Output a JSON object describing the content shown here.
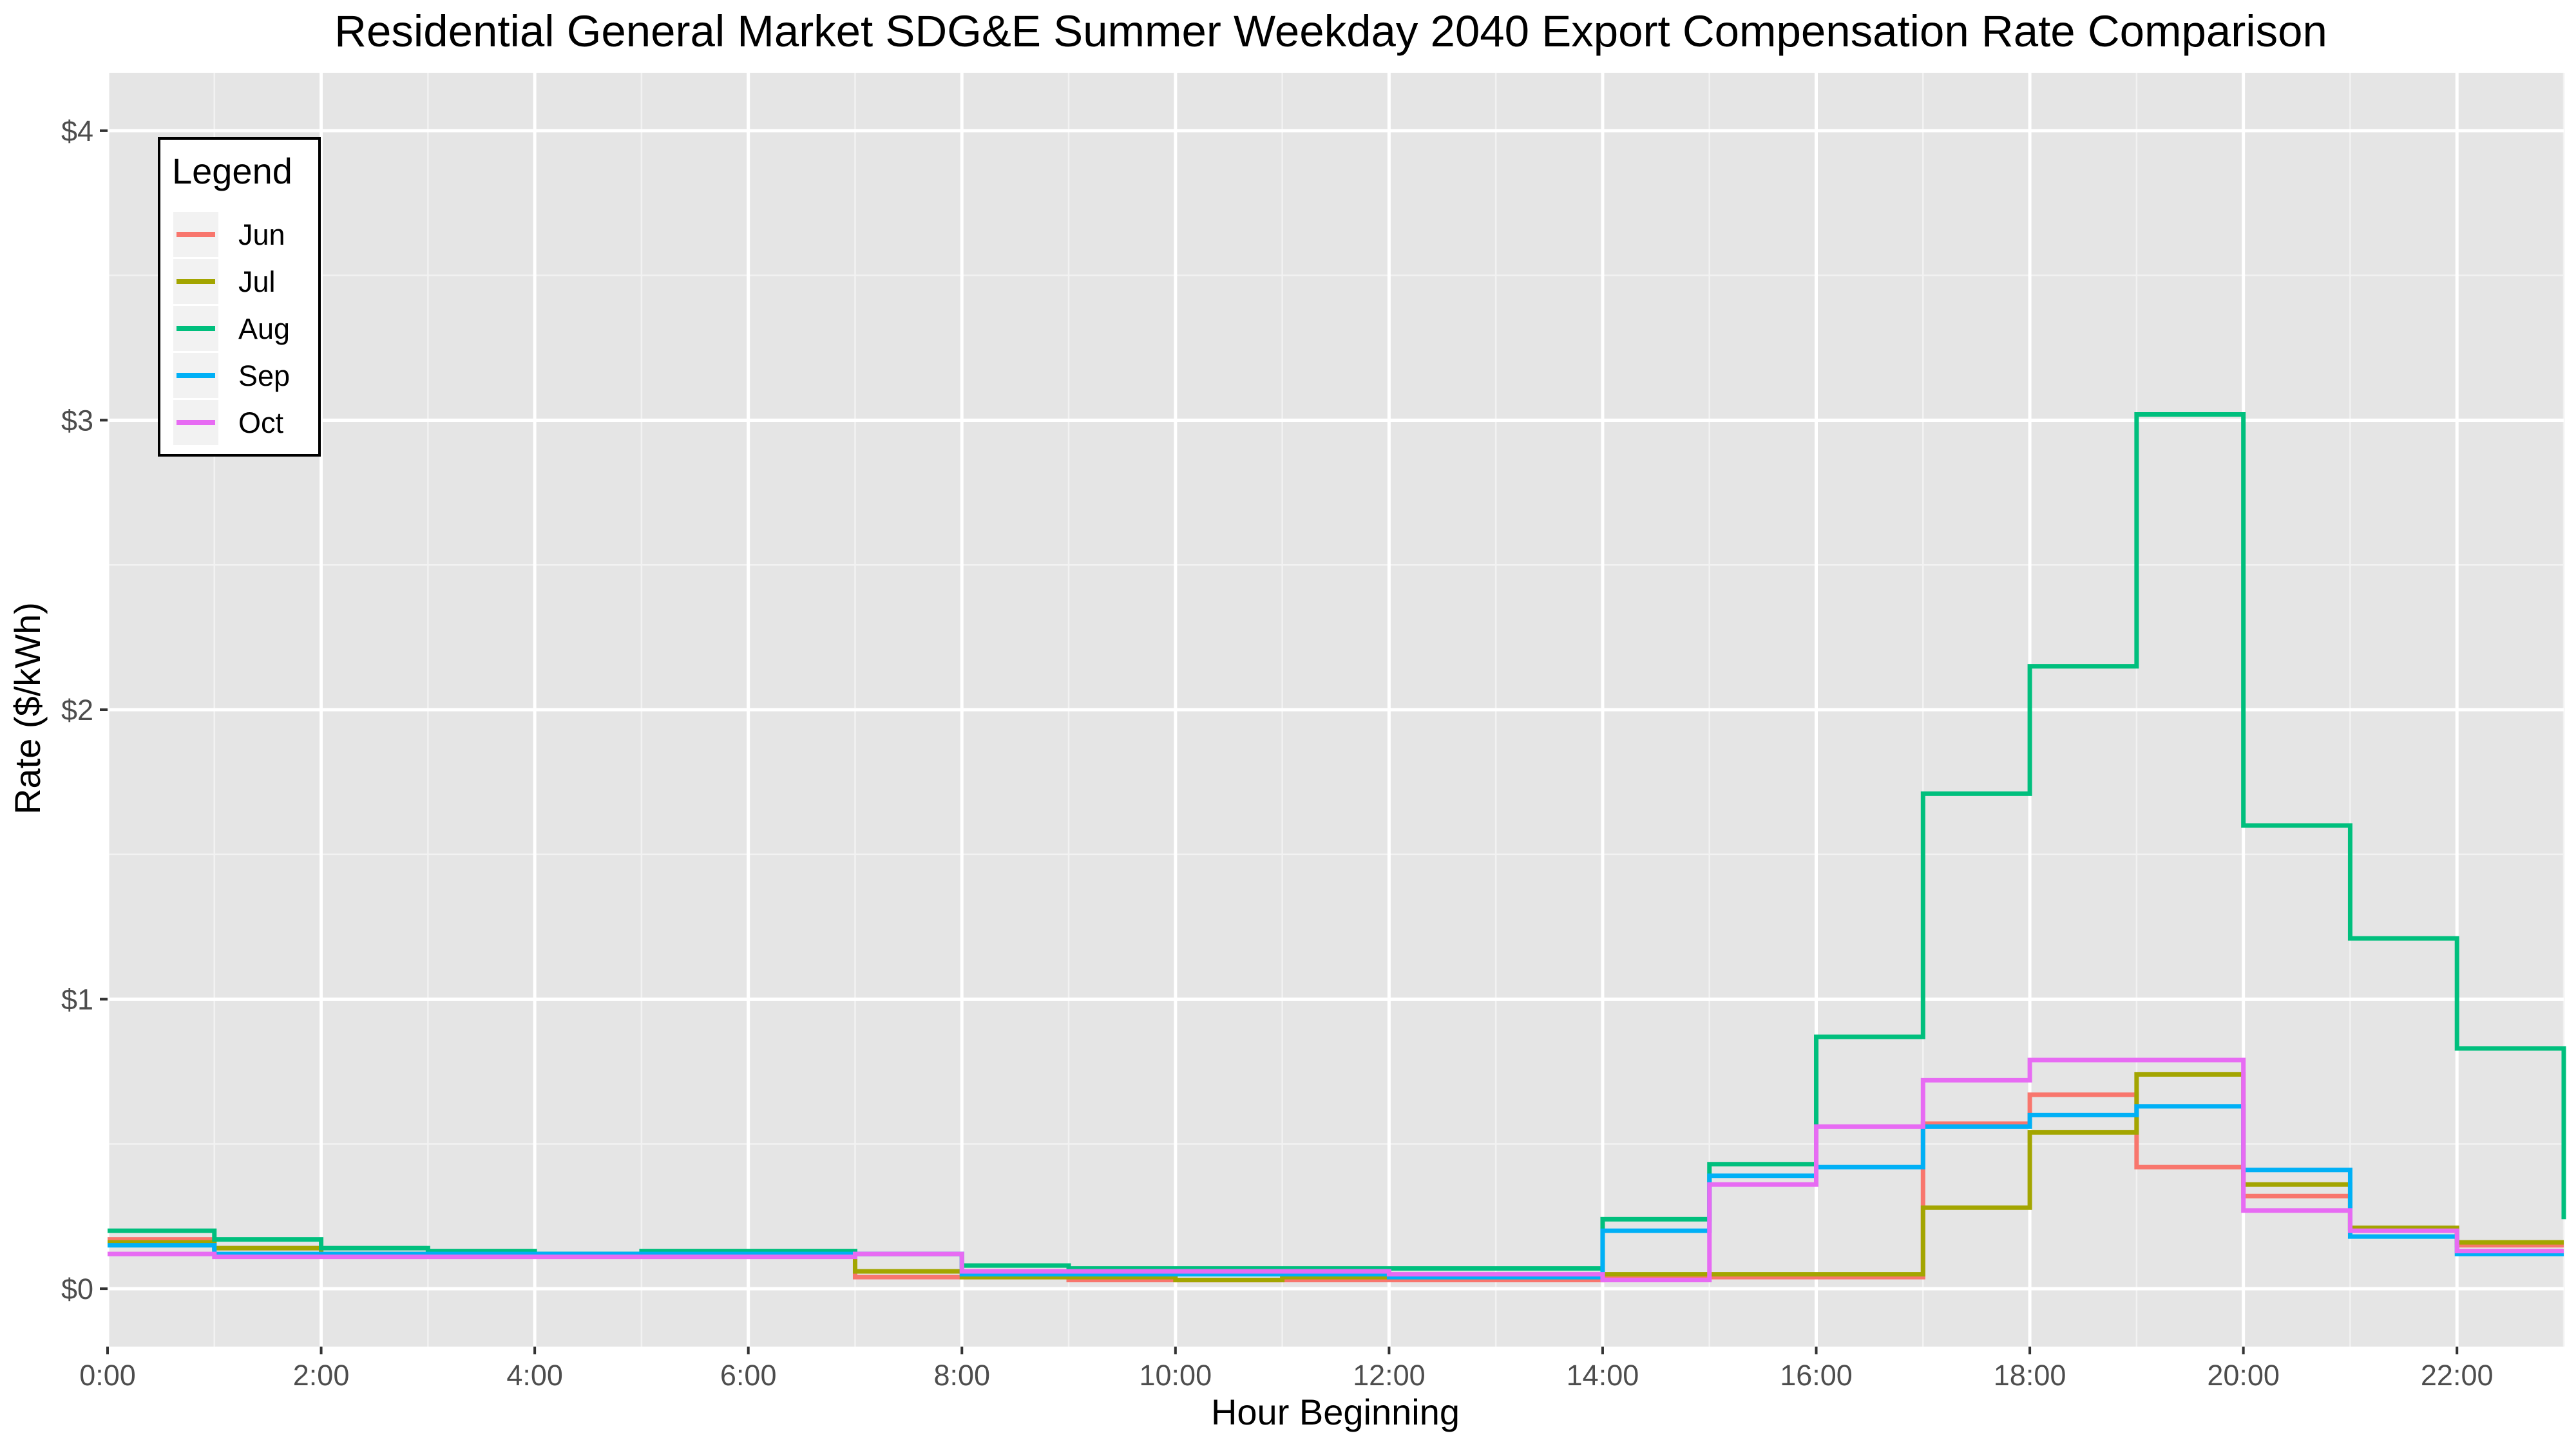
{
  "chart_data": {
    "type": "line",
    "step": true,
    "title": "Residential General Market SDG&E Summer Weekday 2040 Export Compensation Rate Comparison",
    "xlabel": "Hour Beginning",
    "ylabel": "Rate ($/kWh)",
    "xlim": [
      0,
      23
    ],
    "ylim": [
      -0.2,
      4.2
    ],
    "x_ticks": [
      {
        "value": 0,
        "label": "0:00"
      },
      {
        "value": 2,
        "label": "2:00"
      },
      {
        "value": 4,
        "label": "4:00"
      },
      {
        "value": 6,
        "label": "6:00"
      },
      {
        "value": 8,
        "label": "8:00"
      },
      {
        "value": 10,
        "label": "10:00"
      },
      {
        "value": 12,
        "label": "12:00"
      },
      {
        "value": 14,
        "label": "14:00"
      },
      {
        "value": 16,
        "label": "16:00"
      },
      {
        "value": 18,
        "label": "18:00"
      },
      {
        "value": 20,
        "label": "20:00"
      },
      {
        "value": 22,
        "label": "22:00"
      }
    ],
    "y_ticks": [
      {
        "value": 0,
        "label": "$0"
      },
      {
        "value": 1,
        "label": "$1"
      },
      {
        "value": 2,
        "label": "$2"
      },
      {
        "value": 3,
        "label": "$3"
      },
      {
        "value": 4,
        "label": "$4"
      }
    ],
    "grid": true,
    "legend": {
      "title": "Legend",
      "position": "top-left"
    },
    "x": [
      0,
      1,
      2,
      3,
      4,
      5,
      6,
      7,
      8,
      9,
      10,
      11,
      12,
      13,
      14,
      15,
      16,
      17,
      18,
      19,
      20,
      21,
      22,
      23
    ],
    "series": [
      {
        "name": "Jun",
        "color": "#F8766D",
        "values": [
          0.17,
          0.14,
          0.12,
          0.12,
          0.12,
          0.12,
          0.12,
          0.04,
          0.04,
          0.03,
          0.03,
          0.03,
          0.03,
          0.03,
          0.04,
          0.04,
          0.04,
          0.57,
          0.67,
          0.42,
          0.32,
          0.21,
          0.15,
          0.15
        ]
      },
      {
        "name": "Jul",
        "color": "#A3A500",
        "values": [
          0.16,
          0.14,
          0.12,
          0.12,
          0.12,
          0.12,
          0.12,
          0.06,
          0.04,
          0.04,
          0.03,
          0.04,
          0.04,
          0.04,
          0.05,
          0.05,
          0.05,
          0.28,
          0.54,
          0.74,
          0.36,
          0.21,
          0.16,
          0.16
        ]
      },
      {
        "name": "Aug",
        "color": "#00BF7D",
        "values": [
          0.2,
          0.17,
          0.14,
          0.13,
          0.12,
          0.13,
          0.13,
          0.12,
          0.08,
          0.07,
          0.07,
          0.07,
          0.07,
          0.07,
          0.24,
          0.43,
          0.87,
          1.71,
          2.15,
          3.02,
          1.6,
          1.21,
          0.83,
          0.24
        ]
      },
      {
        "name": "Sep",
        "color": "#00B0F6",
        "values": [
          0.15,
          0.12,
          0.12,
          0.12,
          0.12,
          0.12,
          0.12,
          0.12,
          0.05,
          0.05,
          0.05,
          0.05,
          0.04,
          0.04,
          0.2,
          0.39,
          0.42,
          0.56,
          0.6,
          0.63,
          0.41,
          0.18,
          0.12,
          0.12
        ]
      },
      {
        "name": "Oct",
        "color": "#E76BF3",
        "values": [
          0.12,
          0.11,
          0.11,
          0.11,
          0.11,
          0.11,
          0.11,
          0.12,
          0.06,
          0.06,
          0.06,
          0.06,
          0.05,
          0.05,
          0.03,
          0.36,
          0.56,
          0.72,
          0.79,
          0.79,
          0.27,
          0.2,
          0.13,
          0.13
        ]
      }
    ]
  }
}
